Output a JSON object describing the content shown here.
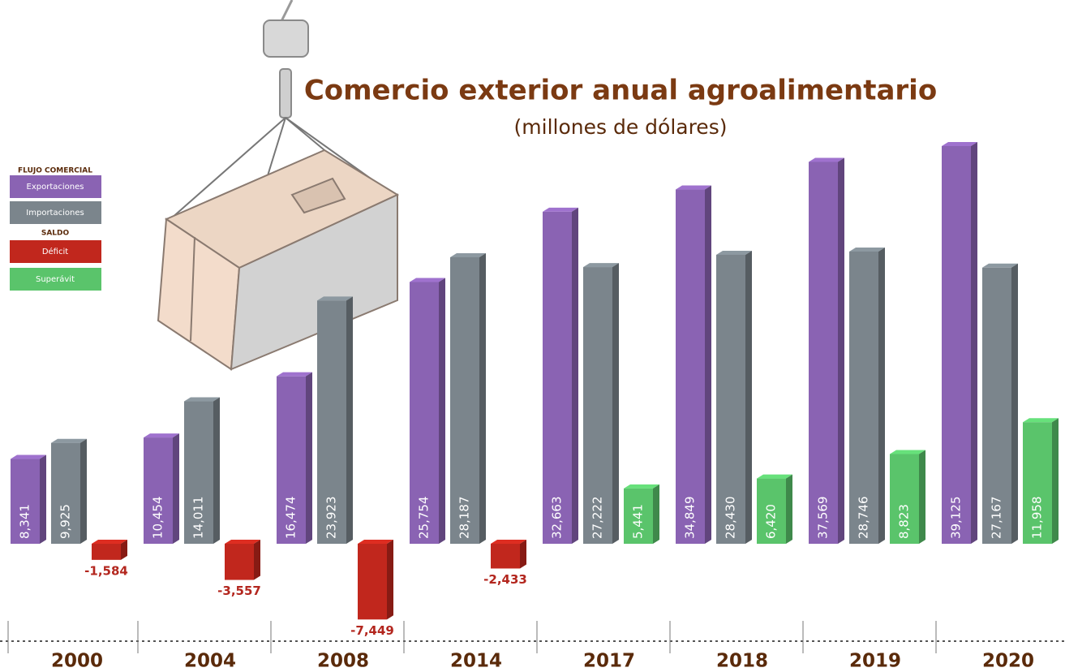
{
  "chart_data": {
    "type": "bar",
    "title": "Comercio exterior anual agroalimentario",
    "subtitle": "(millones de dólares)",
    "legend_title": "FLUJO COMERCIAL",
    "categories": [
      "2000",
      "2004",
      "2008",
      "2014",
      "2017",
      "2018",
      "2019",
      "2020"
    ],
    "series": [
      {
        "name": "Exportaciones",
        "color": "#8a63b3",
        "values": [
          8341,
          10454,
          16474,
          25754,
          32663,
          34849,
          37569,
          39125
        ],
        "value_labels": [
          "8,341",
          "10,454",
          "16,474",
          "25,754",
          "32,663",
          "34,849",
          "37,569",
          "39,125"
        ]
      },
      {
        "name": "Importaciones",
        "color": "#7b858c",
        "values": [
          9925,
          14011,
          23923,
          28187,
          27222,
          28430,
          28746,
          27167
        ],
        "value_labels": [
          "9,925",
          "14,011",
          "23,923",
          "28,187",
          "27,222",
          "28,430",
          "28,746",
          "27,167"
        ]
      },
      {
        "name": "SALDO",
        "negative": {
          "label": "Déficit",
          "color": "#c1271d"
        },
        "positive": {
          "label": "Superávit",
          "color": "#5ac46b"
        },
        "values": [
          -1584,
          -3557,
          -7449,
          -2433,
          5441,
          6420,
          8823,
          11958
        ],
        "value_labels": [
          "-1,584",
          "-3,557",
          "-7,449",
          "-2,433",
          "5,441",
          "6,420",
          "8,823",
          "11,958"
        ]
      }
    ]
  }
}
